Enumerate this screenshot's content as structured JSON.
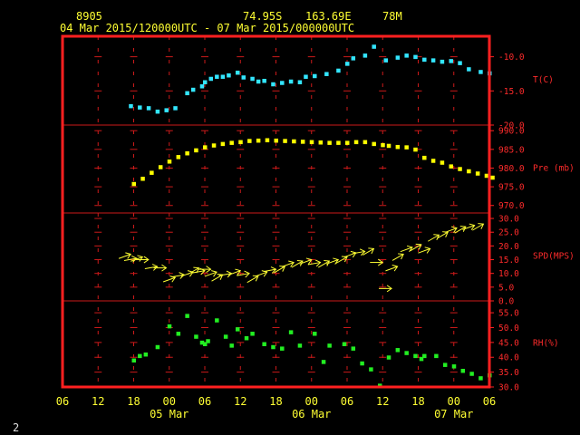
{
  "header": {
    "station_id": "8905",
    "latitude": "74.95S",
    "longitude": "163.69E",
    "elevation": "78M",
    "time_range": "04 Mar 2015/120000UTC - 07 Mar 2015/000000UTC"
  },
  "footer_number": "2",
  "colors": {
    "frame": "#ff2020",
    "grid": "#cc1a1a",
    "axis_text": "#ffff33",
    "label_text": "#ff2b2b",
    "temperature": "#33e6ff",
    "pressure": "#ffff00",
    "wind": "#ffff33",
    "humidity": "#22ee22",
    "background": "#000000"
  },
  "chart_data": {
    "type": "scatter",
    "x_unit": "hours UTC",
    "x_range": [
      "2015-03-04T06:00Z",
      "2015-03-07T06:00Z"
    ],
    "x_ticks": [
      "06",
      "12",
      "18",
      "00",
      "06",
      "12",
      "18",
      "00",
      "06",
      "12",
      "18",
      "00",
      "06"
    ],
    "date_labels": [
      {
        "label": "05 Mar",
        "at": "2015-03-05T00:00Z"
      },
      {
        "label": "06 Mar",
        "at": "2015-03-06T00:00Z"
      },
      {
        "label": "07 Mar",
        "at": "2015-03-07T00:00Z"
      }
    ],
    "panels": [
      {
        "key": "temperature",
        "label": "T(C)",
        "ylim": [
          -20,
          -7
        ],
        "ticks": [
          "-10.0",
          "-15.0",
          "-20.0"
        ],
        "tick_values": [
          -10,
          -15,
          -20
        ],
        "marker": "square",
        "x": [
          11.5,
          13,
          14.5,
          16,
          17.5,
          19,
          21,
          22,
          23.5,
          24,
          25,
          26,
          27,
          28,
          29.5,
          30.5,
          32,
          33,
          34,
          35.5,
          37,
          38.5,
          40,
          41,
          42.5,
          44.5,
          46.5,
          48,
          49,
          51,
          52.5,
          54.5,
          56.5,
          58,
          59.5,
          61,
          62.5,
          64,
          65.5,
          67,
          68.5,
          70.5,
          72
        ],
        "y": [
          -17.2,
          -17.4,
          -17.5,
          -18.0,
          -17.8,
          -17.5,
          -15.3,
          -14.8,
          -14.3,
          -13.7,
          -13.2,
          -12.9,
          -12.9,
          -12.7,
          -12.3,
          -13.0,
          -13.2,
          -13.6,
          -13.5,
          -14.0,
          -13.8,
          -13.6,
          -13.7,
          -12.9,
          -12.8,
          -12.5,
          -12.0,
          -11.0,
          -10.2,
          -9.8,
          -8.5,
          -10.5,
          -10.1,
          -9.8,
          -10.0,
          -10.4,
          -10.5,
          -10.7,
          -10.6,
          -10.9,
          -11.8,
          -12.2,
          -12.4
        ]
      },
      {
        "key": "pressure",
        "label": "Pre (mb)",
        "ylim": [
          968,
          991.5
        ],
        "ticks": [
          "990.0",
          "985.0",
          "980.0",
          "975.0",
          "970.0"
        ],
        "tick_values": [
          990,
          985,
          980,
          975,
          970
        ],
        "marker": "square",
        "x": [
          12,
          13.5,
          15,
          16.5,
          18,
          19.5,
          21,
          22.5,
          24,
          25.5,
          27,
          28.5,
          30,
          31.5,
          33,
          34.5,
          36,
          37.5,
          39,
          40.5,
          42,
          43.5,
          45,
          46.5,
          48,
          49.5,
          51,
          52.5,
          54,
          55,
          56.5,
          58,
          59.5,
          61,
          62.5,
          64,
          65.5,
          67,
          68.5,
          70,
          71.5,
          72.5
        ],
        "y": [
          975.8,
          977.2,
          978.8,
          980.3,
          981.8,
          983.0,
          984.0,
          984.8,
          985.6,
          986.1,
          986.5,
          986.8,
          987.0,
          987.3,
          987.4,
          987.5,
          987.4,
          987.3,
          987.2,
          987.1,
          987.0,
          986.9,
          986.8,
          986.8,
          986.8,
          987.0,
          987.0,
          986.5,
          986.2,
          986.0,
          985.7,
          985.6,
          985.0,
          982.8,
          982.0,
          981.5,
          980.5,
          979.8,
          979.2,
          978.6,
          978.0,
          977.5
        ]
      },
      {
        "key": "wind",
        "label": "SPD(MPS)",
        "ylim": [
          0,
          32
        ],
        "ticks": [
          "30.0",
          "25.0",
          "20.0",
          "15.0",
          "10.0",
          "5.0",
          "0.0"
        ],
        "tick_values": [
          30,
          25,
          20,
          15,
          10,
          5,
          0
        ],
        "marker": "arrow",
        "x": [
          11.5,
          12.5,
          13.5,
          14.5,
          16,
          17.5,
          19,
          20.5,
          22,
          23,
          24,
          25,
          26,
          27,
          28.5,
          30,
          31.5,
          33,
          34.5,
          36,
          37.5,
          39,
          40.5,
          42,
          43.5,
          45,
          46.5,
          48,
          49.5,
          51,
          52.5,
          54,
          55.5,
          56.5,
          57.5,
          59,
          60.5,
          62,
          63.5,
          65,
          66.5,
          68,
          69.5,
          71
        ],
        "y": [
          17.0,
          15.5,
          16.0,
          15.0,
          12.5,
          12.0,
          8.5,
          9.5,
          10.5,
          12.0,
          11.0,
          11.5,
          10.5,
          9.5,
          10.0,
          11.0,
          10.0,
          9.0,
          10.5,
          11.5,
          12.5,
          14.0,
          14.5,
          15.0,
          14.0,
          14.5,
          15.0,
          16.0,
          17.5,
          18.0,
          19.0,
          14.0,
          4.5,
          12.5,
          17.0,
          19.5,
          20.5,
          19.0,
          24.0,
          25.0,
          26.5,
          27.0,
          27.5,
          28.0
        ],
        "direction_deg": [
          200,
          190,
          200,
          180,
          190,
          180,
          200,
          190,
          200,
          210,
          190,
          180,
          200,
          210,
          190,
          200,
          190,
          210,
          200,
          190,
          210,
          200,
          210,
          200,
          190,
          210,
          200,
          210,
          200,
          190,
          210,
          180,
          180,
          200,
          210,
          200,
          210,
          200,
          210,
          210,
          200,
          210,
          200,
          210
        ]
      },
      {
        "key": "humidity",
        "label": "RH(%)",
        "ylim": [
          30,
          59
        ],
        "ticks": [
          "55.0",
          "50.0",
          "45.0",
          "40.0",
          "35.0",
          "30.0"
        ],
        "tick_values": [
          55,
          50,
          45,
          40,
          35,
          30
        ],
        "marker": "square",
        "x": [
          12,
          13,
          14,
          16,
          18,
          19.5,
          21,
          22.5,
          23.5,
          24,
          24.5,
          26,
          27.5,
          28.5,
          29.5,
          31,
          32,
          34,
          35.5,
          37,
          38.5,
          40,
          42.5,
          44,
          45,
          47.5,
          49,
          50.5,
          52,
          53.5,
          55,
          56.5,
          58,
          59.5,
          60.5,
          61,
          63,
          64.5,
          66,
          67.5,
          69,
          70.5,
          72
        ],
        "y": [
          39.0,
          40.5,
          41.0,
          43.5,
          50.5,
          48.0,
          54.0,
          47.0,
          45.0,
          44.5,
          45.5,
          52.5,
          47.0,
          44.0,
          49.5,
          46.5,
          48.0,
          44.5,
          43.5,
          43.0,
          48.5,
          44.0,
          48.0,
          38.5,
          44.0,
          44.5,
          43.0,
          38.0,
          36.0,
          30.5,
          40.0,
          42.5,
          41.5,
          40.5,
          39.5,
          40.5,
          40.5,
          37.5,
          37.0,
          35.5,
          34.5,
          33.0,
          34.0
        ]
      }
    ]
  }
}
